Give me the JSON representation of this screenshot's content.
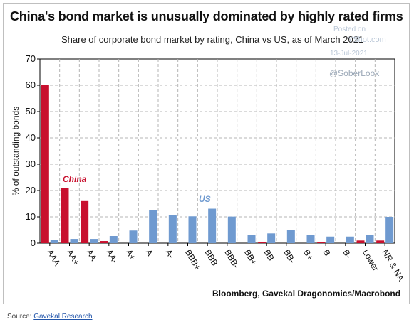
{
  "title": "China's bond market is unusually dominated by highly rated firms",
  "subtitle": "Share of corporate bond market by rating, China vs US, as of March 2021",
  "source_line": "Bloomberg, Gavekal Dragonomics/Macrobond",
  "watermark": {
    "posted": "Posted on",
    "site": "YShot.com",
    "date": "13-Jul-2021",
    "handle": "@SoberLook"
  },
  "footer": {
    "prefix": "Source: ",
    "link_text": "Gavekal Research"
  },
  "colors": {
    "china": "#c8102e",
    "us": "#6f9ad0",
    "grid": "#b5b5b5",
    "axis": "#000000"
  },
  "chart_data": {
    "type": "bar",
    "title": "China's bond market is unusually dominated by highly rated firms",
    "subtitle": "Share of corporate bond market by rating, China vs US, as of March 2021",
    "ylabel": "% of outstanding bonds",
    "xlabel": "",
    "ylim": [
      0,
      70
    ],
    "yticks": [
      0,
      10,
      20,
      30,
      40,
      50,
      60,
      70
    ],
    "grid": true,
    "categories": [
      "AAA",
      "AA+",
      "AA",
      "AA-",
      "A+",
      "A",
      "A-",
      "BBB+",
      "BBB",
      "BBB-",
      "BB+",
      "BB",
      "BB-",
      "B+",
      "B",
      "B-",
      "Lower",
      "NR & NA"
    ],
    "series": [
      {
        "name": "China",
        "color": "#c8102e",
        "values": [
          60,
          21,
          16,
          0.8,
          0,
          0,
          0,
          0,
          0,
          0,
          0,
          0.3,
          0,
          0,
          0.3,
          0,
          1.0,
          1.0
        ]
      },
      {
        "name": "US",
        "color": "#6f9ad0",
        "values": [
          1.2,
          1.6,
          1.6,
          2.7,
          4.8,
          12.6,
          10.7,
          10.2,
          13.1,
          10.1,
          3.0,
          3.7,
          4.9,
          3.2,
          2.5,
          2.5,
          3.1,
          10.0
        ]
      }
    ]
  }
}
